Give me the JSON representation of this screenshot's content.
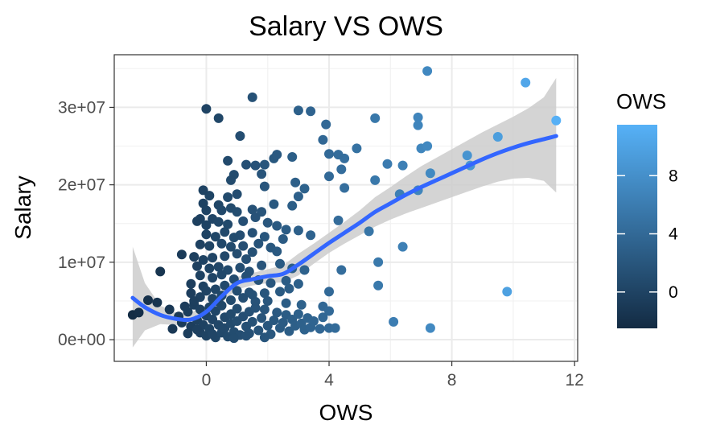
{
  "chart_data": {
    "type": "scatter",
    "title": "Salary VS OWS",
    "xlabel": "OWS",
    "ylabel": "Salary",
    "xlim": [
      -3.0,
      12.1
    ],
    "ylim": [
      -2800000,
      36800000
    ],
    "x_ticks": [
      0,
      4,
      8,
      12
    ],
    "x_tick_labels": [
      "0",
      "4",
      "8",
      "12"
    ],
    "y_ticks": [
      0,
      10000000,
      20000000,
      30000000
    ],
    "y_tick_labels": [
      "0e+00",
      "1e+07",
      "2e+07",
      "3e+07"
    ],
    "grid": true,
    "legend": {
      "title": "OWS",
      "placement": "right",
      "min": -2.5,
      "max": 11.5,
      "ticks": [
        0,
        4,
        8
      ],
      "tick_labels": [
        "0",
        "4",
        "8"
      ],
      "low_color": "#132B43",
      "high_color": "#56B1F7"
    },
    "smooth": {
      "color": "#3366ff",
      "band_color": "#cccccc",
      "x": [
        -2.4,
        -2.0,
        -1.5,
        -1.0,
        -0.5,
        0.0,
        0.5,
        1.0,
        1.5,
        2.0,
        2.5,
        3.0,
        3.5,
        4.0,
        4.5,
        5.0,
        5.5,
        6.0,
        6.5,
        7.0,
        7.5,
        8.0,
        8.5,
        9.0,
        9.5,
        10.0,
        10.5,
        11.0,
        11.4
      ],
      "y": [
        5400000,
        4200000,
        3200000,
        2700000,
        2600000,
        3600000,
        5600000,
        7300000,
        7800000,
        8200000,
        8500000,
        9700000,
        11100000,
        12500000,
        13800000,
        15100000,
        16500000,
        17600000,
        18700000,
        19700000,
        20600000,
        21500000,
        22400000,
        23300000,
        24100000,
        24800000,
        25400000,
        25900000,
        26300000
      ],
      "ymin": [
        -1000000,
        1200000,
        2000000,
        1900000,
        1600000,
        2800000,
        4800000,
        6500000,
        7000000,
        7300000,
        7400000,
        8300000,
        9800000,
        11200000,
        12400000,
        13500000,
        14600000,
        15500000,
        16300000,
        17000000,
        17700000,
        18400000,
        19100000,
        19800000,
        20400000,
        20800000,
        20900000,
        20500000,
        19000000
      ],
      "ymax": [
        12000000,
        7300000,
        4400000,
        3500000,
        3500000,
        4400000,
        6400000,
        8100000,
        8600000,
        9100000,
        9600000,
        11100000,
        12400000,
        13800000,
        15200000,
        16700000,
        18400000,
        19700000,
        21100000,
        22400000,
        23500000,
        24600000,
        25700000,
        26800000,
        27800000,
        28800000,
        29900000,
        31300000,
        33800000
      ]
    },
    "points": [
      {
        "x": 10.4,
        "y": 33200000
      },
      {
        "x": 7.2,
        "y": 34700000
      },
      {
        "x": 11.4,
        "y": 28300000
      },
      {
        "x": 9.5,
        "y": 26200000
      },
      {
        "x": 9.8,
        "y": 6200000
      },
      {
        "x": 8.5,
        "y": 23800000
      },
      {
        "x": 8.6,
        "y": 22500000
      },
      {
        "x": 7.0,
        "y": 24700000
      },
      {
        "x": 7.2,
        "y": 25000000
      },
      {
        "x": 6.9,
        "y": 28700000
      },
      {
        "x": 6.9,
        "y": 27700000
      },
      {
        "x": 7.3,
        "y": 21500000
      },
      {
        "x": 6.9,
        "y": 19300000
      },
      {
        "x": 6.3,
        "y": 18800000
      },
      {
        "x": 6.4,
        "y": 22500000
      },
      {
        "x": 6.4,
        "y": 12000000
      },
      {
        "x": 5.9,
        "y": 22700000
      },
      {
        "x": 5.5,
        "y": 28600000
      },
      {
        "x": 5.5,
        "y": 20600000
      },
      {
        "x": 5.6,
        "y": 10000000
      },
      {
        "x": 5.6,
        "y": 7000000
      },
      {
        "x": 6.1,
        "y": 2300000
      },
      {
        "x": 7.3,
        "y": 1500000
      },
      {
        "x": 5.3,
        "y": 14000000
      },
      {
        "x": 4.9,
        "y": 24700000
      },
      {
        "x": 4.5,
        "y": 23400000
      },
      {
        "x": 4.5,
        "y": 19600000
      },
      {
        "x": 4.4,
        "y": 22000000
      },
      {
        "x": 4.3,
        "y": 23900000
      },
      {
        "x": 4.0,
        "y": 24000000
      },
      {
        "x": 4.0,
        "y": 21100000
      },
      {
        "x": 4.3,
        "y": 15400000
      },
      {
        "x": 4.4,
        "y": 9000000
      },
      {
        "x": 4.0,
        "y": 6200000
      },
      {
        "x": 3.9,
        "y": 27800000
      },
      {
        "x": 3.8,
        "y": 25800000
      },
      {
        "x": 3.4,
        "y": 29500000
      },
      {
        "x": 3.0,
        "y": 29600000
      },
      {
        "x": 1.5,
        "y": 31300000
      },
      {
        "x": -0.0,
        "y": 29800000
      },
      {
        "x": 0.4,
        "y": 28600000
      },
      {
        "x": 1.1,
        "y": 26300000
      },
      {
        "x": 0.7,
        "y": 23100000
      },
      {
        "x": 1.6,
        "y": 22500000
      },
      {
        "x": 1.9,
        "y": 22600000
      },
      {
        "x": 2.2,
        "y": 23400000
      },
      {
        "x": 2.3,
        "y": 23900000
      },
      {
        "x": 2.8,
        "y": 23600000
      },
      {
        "x": 1.3,
        "y": 22600000
      },
      {
        "x": 0.9,
        "y": 21300000
      },
      {
        "x": 0.8,
        "y": 20600000
      },
      {
        "x": 1.8,
        "y": 21400000
      },
      {
        "x": 1.9,
        "y": 19800000
      },
      {
        "x": 2.9,
        "y": 20300000
      },
      {
        "x": 3.2,
        "y": 19500000
      },
      {
        "x": 3.0,
        "y": 18500000
      },
      {
        "x": 2.8,
        "y": 17300000
      },
      {
        "x": 2.2,
        "y": 17500000
      },
      {
        "x": 1.8,
        "y": 16500000
      },
      {
        "x": 1.5,
        "y": 16800000
      },
      {
        "x": 1.0,
        "y": 18800000
      },
      {
        "x": 0.7,
        "y": 18400000
      },
      {
        "x": 0.1,
        "y": 18600000
      },
      {
        "x": -0.1,
        "y": 19300000
      },
      {
        "x": -0.1,
        "y": 17600000
      },
      {
        "x": 0.4,
        "y": 17400000
      },
      {
        "x": -0.0,
        "y": 16700000
      },
      {
        "x": 0.2,
        "y": 15600000
      },
      {
        "x": 0.4,
        "y": 15200000
      },
      {
        "x": 0.5,
        "y": 16700000
      },
      {
        "x": 0.8,
        "y": 17000000
      },
      {
        "x": 1.0,
        "y": 16500000
      },
      {
        "x": -0.2,
        "y": 15600000
      },
      {
        "x": -0.3,
        "y": 15300000
      },
      {
        "x": 0.0,
        "y": 14800000
      },
      {
        "x": 0.7,
        "y": 14900000
      },
      {
        "x": 1.2,
        "y": 15300000
      },
      {
        "x": 1.6,
        "y": 15800000
      },
      {
        "x": 2.0,
        "y": 15100000
      },
      {
        "x": 2.3,
        "y": 14700000
      },
      {
        "x": 2.6,
        "y": 14200000
      },
      {
        "x": 3.0,
        "y": 14100000
      },
      {
        "x": 3.4,
        "y": 13500000
      },
      {
        "x": 2.5,
        "y": 13000000
      },
      {
        "x": 1.9,
        "y": 13300000
      },
      {
        "x": 1.5,
        "y": 13800000
      },
      {
        "x": 1.1,
        "y": 13500000
      },
      {
        "x": 0.9,
        "y": 13200000
      },
      {
        "x": 0.6,
        "y": 13900000
      },
      {
        "x": 0.3,
        "y": 13300000
      },
      {
        "x": 0.0,
        "y": 13600000
      },
      {
        "x": -0.2,
        "y": 12300000
      },
      {
        "x": 0.1,
        "y": 12100000
      },
      {
        "x": 0.5,
        "y": 12400000
      },
      {
        "x": 0.8,
        "y": 12000000
      },
      {
        "x": 1.2,
        "y": 12100000
      },
      {
        "x": 1.7,
        "y": 12400000
      },
      {
        "x": 2.1,
        "y": 11900000
      },
      {
        "x": 1.5,
        "y": 11300000
      },
      {
        "x": 1.0,
        "y": 11100000
      },
      {
        "x": 0.6,
        "y": 10800000
      },
      {
        "x": 0.2,
        "y": 10600000
      },
      {
        "x": -0.1,
        "y": 10300000
      },
      {
        "x": -0.4,
        "y": 10700000
      },
      {
        "x": -0.8,
        "y": 11000000
      },
      {
        "x": -1.5,
        "y": 8800000
      },
      {
        "x": -0.3,
        "y": 9500000
      },
      {
        "x": 0.1,
        "y": 9200000
      },
      {
        "x": 0.4,
        "y": 9400000
      },
      {
        "x": 0.7,
        "y": 9000000
      },
      {
        "x": 1.1,
        "y": 9300000
      },
      {
        "x": 1.4,
        "y": 8800000
      },
      {
        "x": 1.8,
        "y": 9600000
      },
      {
        "x": 2.4,
        "y": 9800000
      },
      {
        "x": 2.8,
        "y": 9200000
      },
      {
        "x": 3.2,
        "y": 9000000
      },
      {
        "x": -0.2,
        "y": 8300000
      },
      {
        "x": 0.2,
        "y": 8000000
      },
      {
        "x": 0.5,
        "y": 8400000
      },
      {
        "x": 0.9,
        "y": 7800000
      },
      {
        "x": 1.3,
        "y": 8200000
      },
      {
        "x": 1.7,
        "y": 7700000
      },
      {
        "x": 2.1,
        "y": 7300000
      },
      {
        "x": 2.6,
        "y": 7600000
      },
      {
        "x": 2.7,
        "y": 6600000
      },
      {
        "x": -0.5,
        "y": 7200000
      },
      {
        "x": -0.1,
        "y": 6900000
      },
      {
        "x": 0.3,
        "y": 6500000
      },
      {
        "x": 0.6,
        "y": 7000000
      },
      {
        "x": 1.0,
        "y": 6300000
      },
      {
        "x": 1.4,
        "y": 6100000
      },
      {
        "x": 1.9,
        "y": 6000000
      },
      {
        "x": 2.4,
        "y": 6200000
      },
      {
        "x": -0.5,
        "y": 6000000
      },
      {
        "x": -0.2,
        "y": 5500000
      },
      {
        "x": 0.2,
        "y": 5300000
      },
      {
        "x": 0.5,
        "y": 5700000
      },
      {
        "x": 0.8,
        "y": 5100000
      },
      {
        "x": 1.2,
        "y": 5400000
      },
      {
        "x": 1.6,
        "y": 4900000
      },
      {
        "x": 2.0,
        "y": 5000000
      },
      {
        "x": 2.6,
        "y": 4700000
      },
      {
        "x": 3.1,
        "y": 4500000
      },
      {
        "x": 3.8,
        "y": 4300000
      },
      {
        "x": 4.0,
        "y": 3700000
      },
      {
        "x": -2.4,
        "y": 3200000
      },
      {
        "x": -2.2,
        "y": 3500000
      },
      {
        "x": -1.9,
        "y": 5100000
      },
      {
        "x": -1.6,
        "y": 4800000
      },
      {
        "x": -1.2,
        "y": 3900000
      },
      {
        "x": -1.1,
        "y": 1400000
      },
      {
        "x": -0.9,
        "y": 3000000
      },
      {
        "x": -0.7,
        "y": 4300000
      },
      {
        "x": -0.8,
        "y": 2200000
      },
      {
        "x": -0.6,
        "y": 3600000
      },
      {
        "x": -0.5,
        "y": 1700000
      },
      {
        "x": -0.4,
        "y": 4500000
      },
      {
        "x": -0.3,
        "y": 2500000
      },
      {
        "x": -0.2,
        "y": 900000
      },
      {
        "x": -0.2,
        "y": 3900000
      },
      {
        "x": -0.1,
        "y": 1900000
      },
      {
        "x": 0.0,
        "y": 3100000
      },
      {
        "x": 0.0,
        "y": 500000
      },
      {
        "x": 0.1,
        "y": 4200000
      },
      {
        "x": 0.1,
        "y": 1400000
      },
      {
        "x": 0.2,
        "y": 2600000
      },
      {
        "x": 0.3,
        "y": 300000
      },
      {
        "x": 0.3,
        "y": 3700000
      },
      {
        "x": 0.4,
        "y": 1900000
      },
      {
        "x": 0.5,
        "y": 900000
      },
      {
        "x": 0.5,
        "y": 4400000
      },
      {
        "x": 0.6,
        "y": 2900000
      },
      {
        "x": 0.6,
        "y": 1500000
      },
      {
        "x": 0.7,
        "y": 400000
      },
      {
        "x": 0.8,
        "y": 3300000
      },
      {
        "x": 0.8,
        "y": 2100000
      },
      {
        "x": 0.9,
        "y": 1000000
      },
      {
        "x": 1.0,
        "y": 4000000
      },
      {
        "x": 1.0,
        "y": 2400000
      },
      {
        "x": 1.1,
        "y": 600000
      },
      {
        "x": 1.2,
        "y": 3000000
      },
      {
        "x": 1.3,
        "y": 1700000
      },
      {
        "x": 1.4,
        "y": 3600000
      },
      {
        "x": 1.4,
        "y": 800000
      },
      {
        "x": 1.5,
        "y": 2300000
      },
      {
        "x": 1.6,
        "y": 4100000
      },
      {
        "x": 1.7,
        "y": 1200000
      },
      {
        "x": 1.8,
        "y": 2800000
      },
      {
        "x": 1.9,
        "y": 3900000
      },
      {
        "x": 2.0,
        "y": 1800000
      },
      {
        "x": 2.1,
        "y": 700000
      },
      {
        "x": 2.2,
        "y": 2500000
      },
      {
        "x": 2.3,
        "y": 3500000
      },
      {
        "x": 2.4,
        "y": 1500000
      },
      {
        "x": 2.5,
        "y": 2200000
      },
      {
        "x": 2.6,
        "y": 3200000
      },
      {
        "x": 2.7,
        "y": 1100000
      },
      {
        "x": 2.8,
        "y": 2600000
      },
      {
        "x": 2.9,
        "y": 1800000
      },
      {
        "x": 3.0,
        "y": 3300000
      },
      {
        "x": 3.1,
        "y": 2100000
      },
      {
        "x": 3.2,
        "y": 1300000
      },
      {
        "x": 3.3,
        "y": 2800000
      },
      {
        "x": 3.4,
        "y": 1600000
      },
      {
        "x": 3.5,
        "y": 2400000
      },
      {
        "x": 3.7,
        "y": 1400000
      },
      {
        "x": 3.8,
        "y": 2900000
      },
      {
        "x": 4.0,
        "y": 1500000
      },
      {
        "x": 4.2,
        "y": 1500000
      },
      {
        "x": -0.6,
        "y": 800000
      },
      {
        "x": -0.3,
        "y": 1300000
      },
      {
        "x": 0.2,
        "y": 700000
      },
      {
        "x": 0.9,
        "y": 200000
      },
      {
        "x": 1.3,
        "y": 500000
      },
      {
        "x": 1.9,
        "y": 300000
      },
      {
        "x": 0.4,
        "y": 4900000
      },
      {
        "x": 1.5,
        "y": 5800000
      },
      {
        "x": 0.0,
        "y": 6300000
      },
      {
        "x": -0.4,
        "y": 5000000
      },
      {
        "x": 2.3,
        "y": 11400000
      },
      {
        "x": 1.3,
        "y": 10400000
      },
      {
        "x": 3.0,
        "y": 7200000
      }
    ]
  }
}
